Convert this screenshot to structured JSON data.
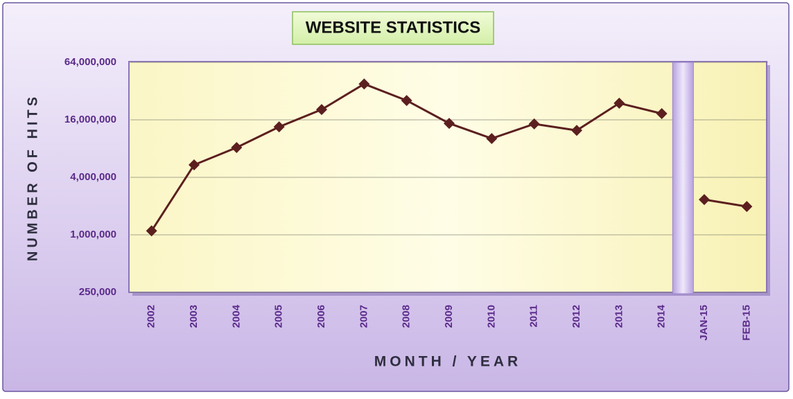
{
  "chart_data": {
    "type": "line",
    "title": "WEBSITE STATISTICS",
    "x_label": "MONTH / YEAR",
    "y_label": "NUMBER OF HITS",
    "categories": [
      "2002",
      "2003",
      "2004",
      "2005",
      "2006",
      "2007",
      "2008",
      "2009",
      "2010",
      "2011",
      "2012",
      "2013",
      "2014",
      "JAN-15",
      "FEB-15"
    ],
    "series": [
      {
        "name": "Hits",
        "color": "#5c1f1f",
        "values": [
          1100000,
          5400000,
          8200000,
          13500000,
          20500000,
          38000000,
          25500000,
          14700000,
          10200000,
          14500000,
          12400000,
          23900000,
          18600000,
          2340000,
          1980000
        ]
      }
    ],
    "y_log": true,
    "ylim": [
      250000,
      64000000
    ],
    "yticks": [
      {
        "value": 250000,
        "label": "250,000"
      },
      {
        "value": 1000000,
        "label": "1,000,000"
      },
      {
        "value": 4000000,
        "label": "4,000,000"
      },
      {
        "value": 16000000,
        "label": "16,000,000"
      },
      {
        "value": 64000000,
        "label": "64,000,000"
      }
    ],
    "grid": true
  }
}
